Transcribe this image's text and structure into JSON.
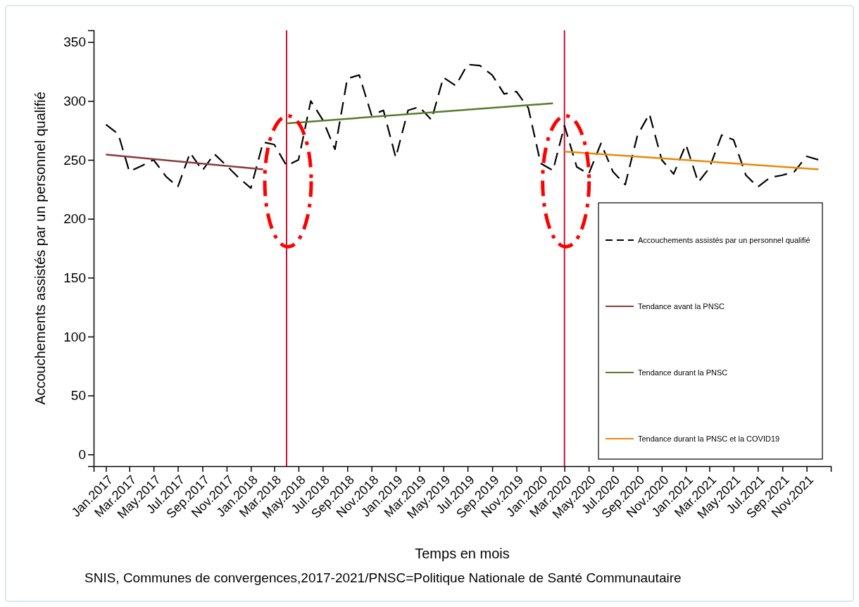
{
  "chart_data": {
    "type": "line",
    "xlabel": "Temps en mois",
    "ylabel": "Accouchements assistés par un personnel qualifié",
    "x": [
      "2017-01",
      "2017-02",
      "2017-03",
      "2017-04",
      "2017-05",
      "2017-06",
      "2017-07",
      "2017-08",
      "2017-09",
      "2017-10",
      "2017-11",
      "2017-12",
      "2018-01",
      "2018-02",
      "2018-03",
      "2018-04",
      "2018-05",
      "2018-06",
      "2018-07",
      "2018-08",
      "2018-09",
      "2018-10",
      "2018-11",
      "2018-12",
      "2019-01",
      "2019-02",
      "2019-03",
      "2019-04",
      "2019-05",
      "2019-06",
      "2019-07",
      "2019-08",
      "2019-09",
      "2019-10",
      "2019-11",
      "2019-12",
      "2020-01",
      "2020-02",
      "2020-03",
      "2020-04",
      "2020-05",
      "2020-06",
      "2020-07",
      "2020-08",
      "2020-09",
      "2020-10",
      "2020-11",
      "2020-12",
      "2021-01",
      "2021-02",
      "2021-03",
      "2021-04",
      "2021-05",
      "2021-06",
      "2021-07",
      "2021-08",
      "2021-09",
      "2021-10",
      "2021-11",
      "2021-12"
    ],
    "series": [
      {
        "name": "Accouchements assistés par un personnel qualifié",
        "color": "#000000",
        "line_style": "dashed",
        "values": [
          280,
          272,
          240,
          245,
          250,
          236,
          227,
          256,
          241,
          255,
          245,
          235,
          226,
          265,
          263,
          245,
          250,
          300,
          284,
          259,
          319,
          322,
          288,
          292,
          252,
          292,
          295,
          284,
          320,
          313,
          331,
          330,
          322,
          306,
          308,
          294,
          247,
          241,
          279,
          244,
          238,
          264,
          240,
          229,
          271,
          289,
          250,
          238,
          263,
          231,
          243,
          271,
          267,
          237,
          227,
          235,
          237,
          240,
          253,
          250
        ]
      },
      {
        "name": "Tendance avant la PNSC",
        "type": "line",
        "color": "#8b3a3e",
        "line_style": "solid",
        "x": [
          "2017-01",
          "2018-02"
        ],
        "values": [
          254.5,
          242
        ]
      },
      {
        "name": "Tendance durant la PNSC",
        "type": "line",
        "color": "#5a7a2e",
        "line_style": "solid",
        "x": [
          "2018-04",
          "2020-02"
        ],
        "values": [
          281,
          298
        ]
      },
      {
        "name": "Tendance durant la PNSC et la COVID19",
        "type": "line",
        "color": "#e8890c",
        "line_style": "solid",
        "x": [
          "2020-03",
          "2021-12"
        ],
        "values": [
          257,
          242
        ]
      }
    ],
    "xlim": [
      "2016-12",
      "2022-01"
    ],
    "xticks": [
      {
        "value": "2017-01",
        "label": "Jan.2017"
      },
      {
        "value": "2017-03",
        "label": "Mar.2017"
      },
      {
        "value": "2017-05",
        "label": "May.2017"
      },
      {
        "value": "2017-07",
        "label": "Jul.2017"
      },
      {
        "value": "2017-09",
        "label": "Sep.2017"
      },
      {
        "value": "2017-11",
        "label": "Nov.2017"
      },
      {
        "value": "2018-01",
        "label": "Jan.2018"
      },
      {
        "value": "2018-03",
        "label": "Mar.2018"
      },
      {
        "value": "2018-05",
        "label": "May.2018"
      },
      {
        "value": "2018-07",
        "label": "Jul.2018"
      },
      {
        "value": "2018-09",
        "label": "Sep.2018"
      },
      {
        "value": "2018-11",
        "label": "Nov.2018"
      },
      {
        "value": "2019-01",
        "label": "Jan.2019"
      },
      {
        "value": "2019-03",
        "label": "Mar.2019"
      },
      {
        "value": "2019-05",
        "label": "May.2019"
      },
      {
        "value": "2019-07",
        "label": "Jul.2019"
      },
      {
        "value": "2019-09",
        "label": "Sep.2019"
      },
      {
        "value": "2019-11",
        "label": "Nov.2019"
      },
      {
        "value": "2020-01",
        "label": "Jan.2020"
      },
      {
        "value": "2020-03",
        "label": "Mar.2020"
      },
      {
        "value": "2020-05",
        "label": "May.2020"
      },
      {
        "value": "2020-07",
        "label": "Jul.2020"
      },
      {
        "value": "2020-09",
        "label": "Sep.2020"
      },
      {
        "value": "2020-11",
        "label": "Nov.2020"
      },
      {
        "value": "2021-01",
        "label": "Jan.2021"
      },
      {
        "value": "2021-03",
        "label": "Mar.2021"
      },
      {
        "value": "2021-05",
        "label": "May.2021"
      },
      {
        "value": "2021-07",
        "label": "Jul.2021"
      },
      {
        "value": "2021-09",
        "label": "Sep.2021"
      },
      {
        "value": "2021-11",
        "label": "Nov.2021"
      }
    ],
    "ylim": [
      -10,
      360
    ],
    "yticks": [
      0,
      50,
      100,
      150,
      200,
      250,
      300,
      350
    ],
    "ref_lines": [
      {
        "axis": "x",
        "value": "2018-04",
        "color": "#c8102e"
      },
      {
        "axis": "x",
        "value": "2020-03",
        "color": "#c8102e"
      }
    ],
    "grid": false,
    "legend": "bottom right",
    "annotations": [
      "SNIS, Communes de convergences,2017-2021/PNSC=Politique Nationale de Santé Communautaire"
    ]
  }
}
